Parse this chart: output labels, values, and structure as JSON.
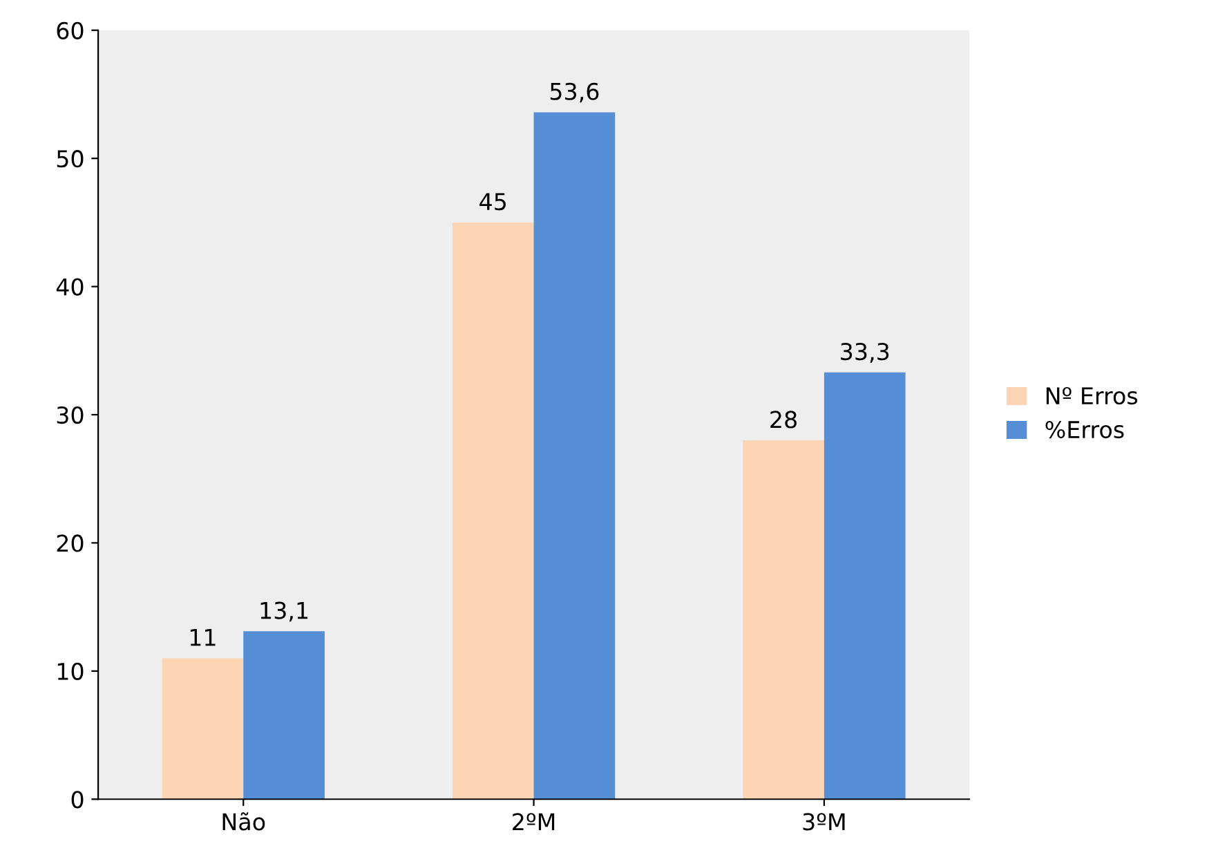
{
  "chart_data": {
    "type": "bar",
    "categories": [
      "Não",
      "2ºM",
      "3ºM"
    ],
    "series": [
      {
        "name": "Nº Erros",
        "color": "#fcd5b5",
        "values": [
          11,
          45,
          28
        ],
        "value_labels": [
          "11",
          "45",
          "28"
        ]
      },
      {
        "name": "%Erros",
        "color": "#558ed5",
        "values": [
          13.1,
          53.6,
          33.3
        ],
        "value_labels": [
          "13,1",
          "53,6",
          "33,3"
        ]
      }
    ],
    "ylim": [
      0,
      60
    ],
    "yticks": [
      0,
      10,
      20,
      30,
      40,
      50,
      60
    ],
    "grid": false,
    "legend": "right"
  }
}
